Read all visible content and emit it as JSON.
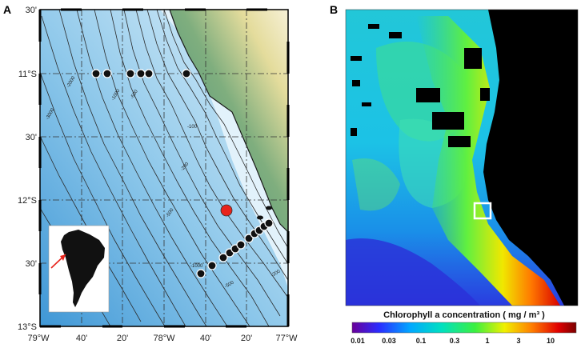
{
  "panel_a": {
    "letter": "A",
    "lat_labels": [
      "30'",
      "11°S",
      "30'",
      "12°S",
      "30'",
      "13°S"
    ],
    "lon_labels": [
      "79°W",
      "40'",
      "20'",
      "78°W",
      "40'",
      "20'",
      "77°W"
    ],
    "contour_labels": [
      "-2000",
      "-3000",
      "-1000",
      "-500",
      "-100",
      "-200",
      "-500",
      "-1000",
      "-500",
      "-200"
    ],
    "stations_11s_count": 7,
    "stations_diagonal_count": 12,
    "highlight_station_color": "#e8231b",
    "ocean_color_deep": "#4fa4d9",
    "ocean_color_shallow": "#d9edf8",
    "land_color": "#4e9a7e",
    "inset_region": "South America",
    "inset_arrow_color": "#e8231b"
  },
  "panel_b": {
    "letter": "B",
    "colorbar_title": "Chlorophyll a concentration ( mg / m³ )",
    "colorbar_ticks": [
      "0.01",
      "0.03",
      "0.1",
      "0.3",
      "1",
      "3",
      "10"
    ],
    "colorbar_colors": [
      "#6a0099",
      "#2a2cff",
      "#00a8ff",
      "#00e0c0",
      "#3cf040",
      "#f0f000",
      "#ff8000",
      "#e00000",
      "#7a0000"
    ],
    "land_color": "#000000",
    "study_box_color": "#ffffff"
  }
}
